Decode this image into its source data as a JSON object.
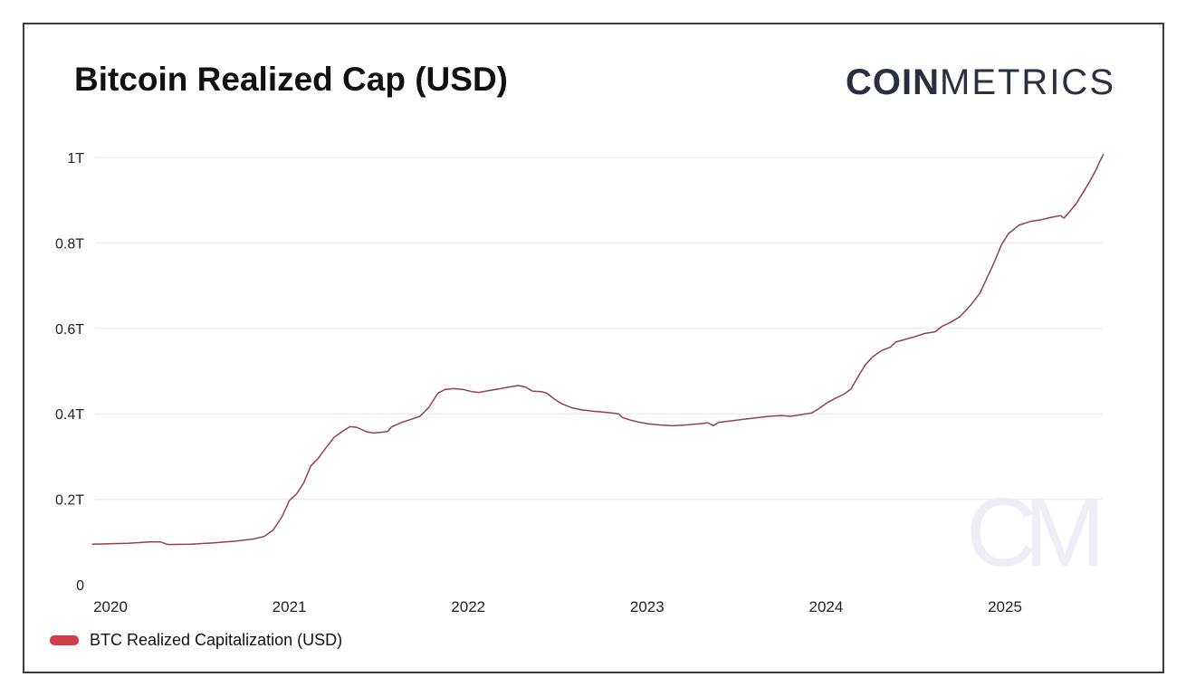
{
  "page": {
    "title": "Bitcoin Realized Cap (USD)"
  },
  "brand": {
    "logo_bold": "COIN",
    "logo_light": "METRICS",
    "logo_color": "#2a2f3f",
    "watermark": "CM"
  },
  "legend": {
    "label": "BTC Realized Capitalization (USD)",
    "swatch_color": "#d23b48"
  },
  "chart_data": {
    "type": "line",
    "title": "Bitcoin Realized Cap (USD)",
    "xlabel": "",
    "ylabel": "",
    "unit": "trillion USD",
    "grid": "horizontal",
    "legend_position": "bottom-left",
    "x_ticks": [
      2020,
      2021,
      2022,
      2023,
      2024,
      2025
    ],
    "y_ticks": [
      {
        "value": 0,
        "label": "0"
      },
      {
        "value": 0.2,
        "label": "0.2T"
      },
      {
        "value": 0.4,
        "label": "0.4T"
      },
      {
        "value": 0.6,
        "label": "0.6T"
      },
      {
        "value": 0.8,
        "label": "0.8T"
      },
      {
        "value": 1.0,
        "label": "1T"
      }
    ],
    "xlim": [
      2019.9,
      2025.56
    ],
    "ylim": [
      0,
      1.05
    ],
    "grid_color": "#ededf1",
    "series": [
      {
        "name": "BTC Realized Capitalization (USD)",
        "line_color": "#93414e",
        "legend_color": "#d23b48",
        "points": [
          [
            2019.9,
            0.095
          ],
          [
            2020.0,
            0.096
          ],
          [
            2020.1,
            0.097
          ],
          [
            2020.22,
            0.1
          ],
          [
            2020.28,
            0.1
          ],
          [
            2020.32,
            0.094
          ],
          [
            2020.45,
            0.095
          ],
          [
            2020.58,
            0.098
          ],
          [
            2020.7,
            0.102
          ],
          [
            2020.8,
            0.107
          ],
          [
            2020.86,
            0.113
          ],
          [
            2020.91,
            0.128
          ],
          [
            2020.96,
            0.16
          ],
          [
            2021.0,
            0.197
          ],
          [
            2021.04,
            0.212
          ],
          [
            2021.08,
            0.238
          ],
          [
            2021.12,
            0.278
          ],
          [
            2021.16,
            0.295
          ],
          [
            2021.2,
            0.318
          ],
          [
            2021.25,
            0.345
          ],
          [
            2021.3,
            0.36
          ],
          [
            2021.34,
            0.37
          ],
          [
            2021.38,
            0.368
          ],
          [
            2021.43,
            0.358
          ],
          [
            2021.47,
            0.355
          ],
          [
            2021.52,
            0.357
          ],
          [
            2021.55,
            0.359
          ],
          [
            2021.57,
            0.369
          ],
          [
            2021.63,
            0.38
          ],
          [
            2021.68,
            0.387
          ],
          [
            2021.73,
            0.394
          ],
          [
            2021.78,
            0.415
          ],
          [
            2021.83,
            0.448
          ],
          [
            2021.87,
            0.457
          ],
          [
            2021.92,
            0.459
          ],
          [
            2021.97,
            0.457
          ],
          [
            2022.02,
            0.452
          ],
          [
            2022.06,
            0.45
          ],
          [
            2022.11,
            0.454
          ],
          [
            2022.17,
            0.458
          ],
          [
            2022.22,
            0.462
          ],
          [
            2022.28,
            0.466
          ],
          [
            2022.32,
            0.463
          ],
          [
            2022.36,
            0.453
          ],
          [
            2022.41,
            0.452
          ],
          [
            2022.44,
            0.448
          ],
          [
            2022.48,
            0.435
          ],
          [
            2022.52,
            0.424
          ],
          [
            2022.58,
            0.414
          ],
          [
            2022.64,
            0.409
          ],
          [
            2022.7,
            0.406
          ],
          [
            2022.78,
            0.403
          ],
          [
            2022.84,
            0.4
          ],
          [
            2022.86,
            0.392
          ],
          [
            2022.9,
            0.386
          ],
          [
            2022.95,
            0.381
          ],
          [
            2023.0,
            0.377
          ],
          [
            2023.07,
            0.374
          ],
          [
            2023.14,
            0.372
          ],
          [
            2023.22,
            0.374
          ],
          [
            2023.3,
            0.377
          ],
          [
            2023.34,
            0.379
          ],
          [
            2023.37,
            0.372
          ],
          [
            2023.4,
            0.38
          ],
          [
            2023.46,
            0.383
          ],
          [
            2023.52,
            0.386
          ],
          [
            2023.6,
            0.39
          ],
          [
            2023.68,
            0.394
          ],
          [
            2023.75,
            0.396
          ],
          [
            2023.8,
            0.394
          ],
          [
            2023.86,
            0.398
          ],
          [
            2023.92,
            0.402
          ],
          [
            2023.96,
            0.412
          ],
          [
            2024.0,
            0.424
          ],
          [
            2024.05,
            0.436
          ],
          [
            2024.1,
            0.446
          ],
          [
            2024.14,
            0.458
          ],
          [
            2024.18,
            0.488
          ],
          [
            2024.22,
            0.515
          ],
          [
            2024.26,
            0.533
          ],
          [
            2024.31,
            0.548
          ],
          [
            2024.36,
            0.556
          ],
          [
            2024.39,
            0.568
          ],
          [
            2024.44,
            0.574
          ],
          [
            2024.5,
            0.581
          ],
          [
            2024.55,
            0.588
          ],
          [
            2024.61,
            0.592
          ],
          [
            2024.65,
            0.605
          ],
          [
            2024.7,
            0.615
          ],
          [
            2024.75,
            0.628
          ],
          [
            2024.81,
            0.655
          ],
          [
            2024.86,
            0.682
          ],
          [
            2024.9,
            0.718
          ],
          [
            2024.94,
            0.754
          ],
          [
            2024.98,
            0.795
          ],
          [
            2025.02,
            0.822
          ],
          [
            2025.08,
            0.842
          ],
          [
            2025.14,
            0.85
          ],
          [
            2025.2,
            0.854
          ],
          [
            2025.26,
            0.86
          ],
          [
            2025.31,
            0.864
          ],
          [
            2025.33,
            0.858
          ],
          [
            2025.36,
            0.872
          ],
          [
            2025.4,
            0.893
          ],
          [
            2025.44,
            0.92
          ],
          [
            2025.48,
            0.948
          ],
          [
            2025.51,
            0.972
          ],
          [
            2025.53,
            0.99
          ],
          [
            2025.55,
            1.007
          ]
        ]
      }
    ]
  }
}
